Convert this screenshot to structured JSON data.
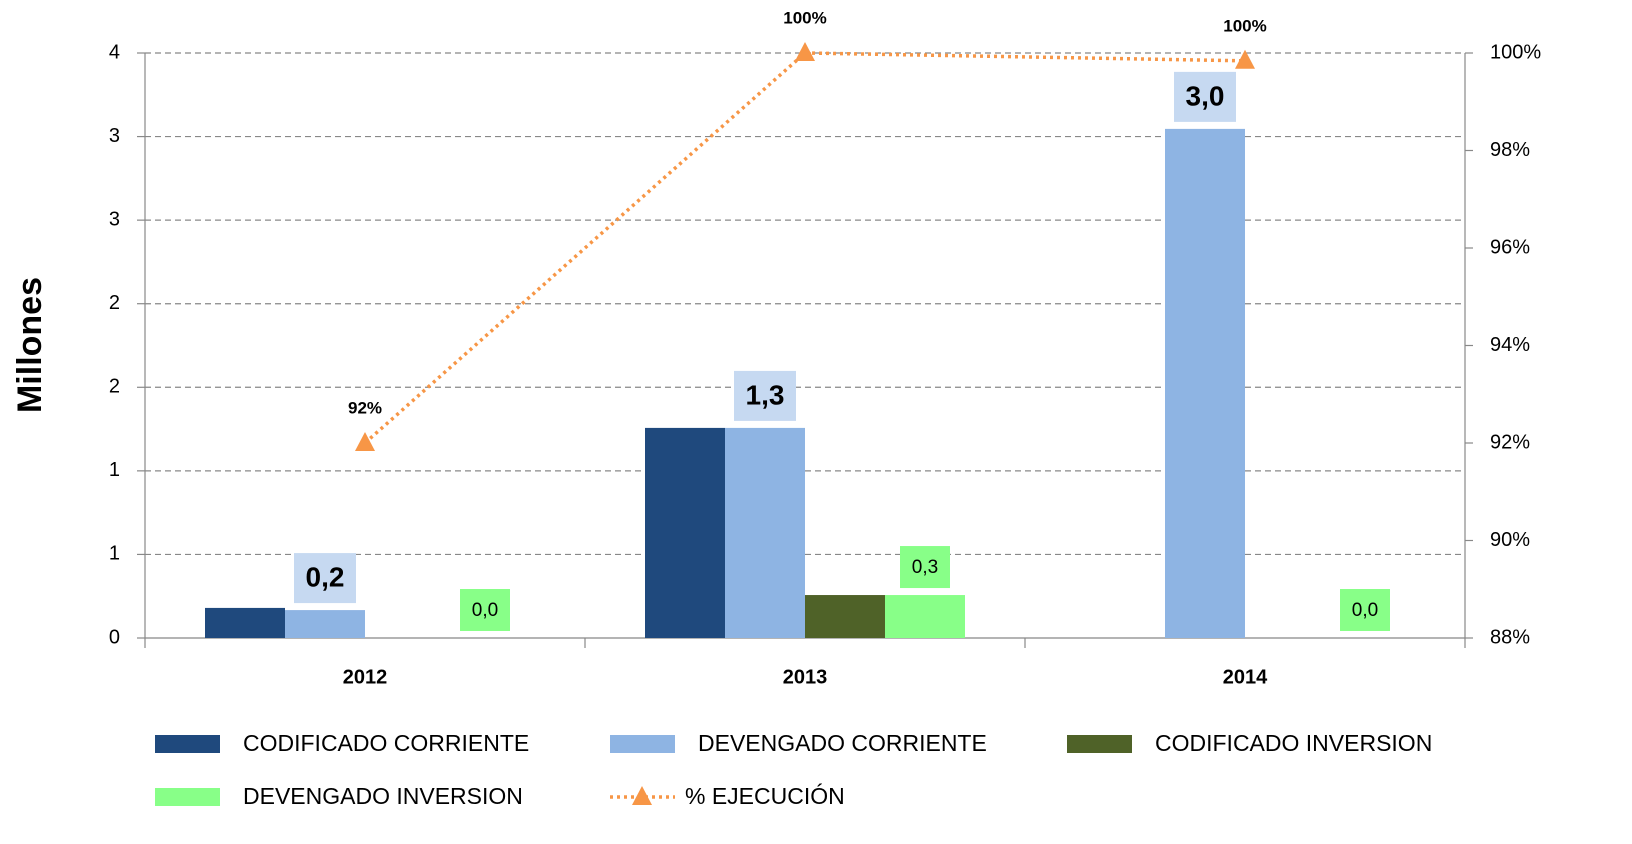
{
  "chart_data": {
    "type": "bar",
    "y_label": "Millones",
    "categories": [
      "2012",
      "2013",
      "2014"
    ],
    "series": [
      {
        "name": "CODIFICADO CORRIENTE",
        "color": "#1f497d",
        "values": [
          0.18,
          1.257,
          null
        ]
      },
      {
        "name": "DEVENGADO CORRIENTE",
        "color": "#8eb4e3",
        "values": [
          0.167,
          1.257,
          3.046
        ],
        "value_labels": [
          "0,2",
          "1,3",
          "3,0"
        ],
        "label_bg": "#c6d9f1"
      },
      {
        "name": "CODIFICADO INVERSION",
        "color": "#4f6228",
        "values": [
          null,
          0.257,
          null
        ]
      },
      {
        "name": "DEVENGADO INVERSION",
        "color": "#88ff88",
        "values": [
          0,
          0.257,
          0
        ],
        "value_labels": [
          "0,0",
          "0,3",
          "0,0"
        ],
        "label_bg": "#88ff88"
      },
      {
        "name": "% EJECUCIÓN",
        "type": "line",
        "axis": "y2",
        "color": "#f79646",
        "values": [
          92,
          100,
          99.84
        ],
        "value_labels": [
          "92%",
          "100%",
          "100%"
        ]
      }
    ],
    "ylim": [
      0,
      3.5
    ],
    "yticks": [
      0,
      {
        "value": 0.5,
        "label": "1"
      },
      1,
      {
        "value": 1.5,
        "label": "2"
      },
      2,
      {
        "value": 2.5,
        "label": "3"
      },
      3,
      {
        "value": 3.5,
        "label": "4"
      }
    ],
    "y2lim": [
      88,
      100
    ],
    "y2ticks": [
      {
        "value": 88,
        "label": "88%"
      },
      {
        "value": 90,
        "label": "90%"
      },
      {
        "value": 92,
        "label": "92%"
      },
      {
        "value": 94,
        "label": "94%"
      },
      {
        "value": 96,
        "label": "96%"
      },
      {
        "value": 98,
        "label": "98%"
      },
      {
        "value": 100,
        "label": "100%"
      }
    ],
    "grid": true,
    "legend": "bottom"
  }
}
